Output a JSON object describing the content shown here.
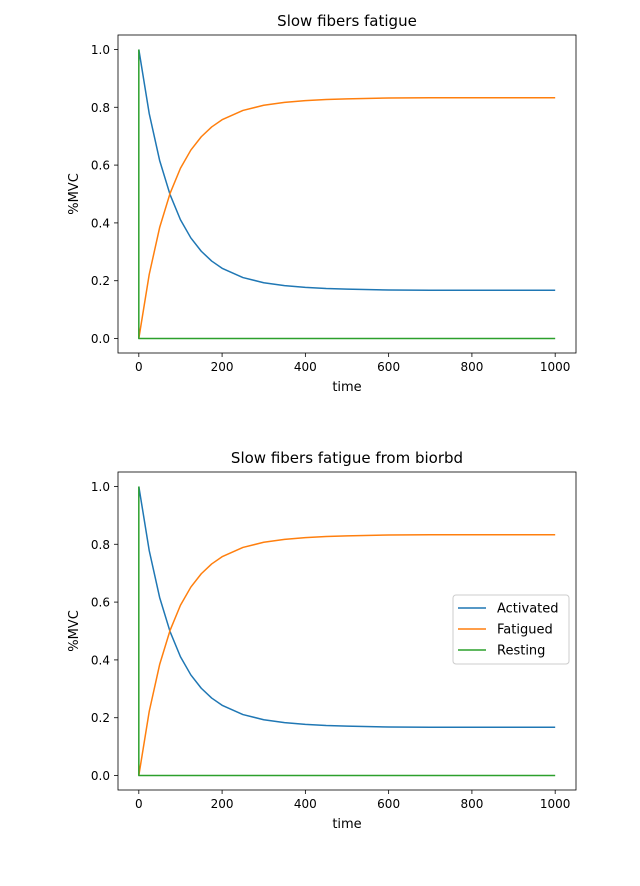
{
  "colors": {
    "activated": "#1f77b4",
    "fatigued": "#ff7f0e",
    "resting": "#2ca02c",
    "legend_border": "#cccccc"
  },
  "chart_data": [
    {
      "type": "line",
      "title": "Slow fibers fatigue",
      "xlabel": "time",
      "ylabel": "%MVC",
      "xlim": [
        -50,
        1050
      ],
      "ylim": [
        -0.05,
        1.05
      ],
      "xticks": [
        0,
        200,
        400,
        600,
        800,
        1000
      ],
      "yticks": [
        0.0,
        0.2,
        0.4,
        0.6,
        0.8,
        1.0
      ],
      "xtick_labels": [
        "0",
        "200",
        "400",
        "600",
        "800",
        "1000"
      ],
      "ytick_labels": [
        "0.0",
        "0.2",
        "0.4",
        "0.6",
        "0.8",
        "1.0"
      ],
      "grid": false,
      "legend": null,
      "series": [
        {
          "color": "#1f77b4",
          "x": [
            0,
            25,
            50,
            75,
            100,
            125,
            150,
            175,
            200,
            250,
            300,
            350,
            400,
            450,
            500,
            600,
            700,
            800,
            900,
            1000
          ],
          "values": [
            1.0,
            0.778,
            0.616,
            0.498,
            0.411,
            0.348,
            0.302,
            0.268,
            0.243,
            0.211,
            0.193,
            0.183,
            0.177,
            0.173,
            0.171,
            0.168,
            0.167,
            0.167,
            0.167,
            0.167
          ]
        },
        {
          "color": "#ff7f0e",
          "x": [
            0,
            25,
            50,
            75,
            100,
            125,
            150,
            175,
            200,
            250,
            300,
            350,
            400,
            450,
            500,
            600,
            700,
            800,
            900,
            1000
          ],
          "values": [
            0.0,
            0.222,
            0.384,
            0.502,
            0.589,
            0.652,
            0.698,
            0.732,
            0.757,
            0.789,
            0.807,
            0.817,
            0.823,
            0.827,
            0.829,
            0.832,
            0.833,
            0.833,
            0.833,
            0.833
          ]
        },
        {
          "color": "#2ca02c",
          "x": [
            0,
            0,
            0,
            1000
          ],
          "values": [
            1.0,
            0.0,
            0.0,
            0.0
          ]
        }
      ]
    },
    {
      "type": "line",
      "title": "Slow fibers fatigue from biorbd",
      "xlabel": "time",
      "ylabel": "%MVC",
      "xlim": [
        -50,
        1050
      ],
      "ylim": [
        -0.05,
        1.05
      ],
      "xticks": [
        0,
        200,
        400,
        600,
        800,
        1000
      ],
      "yticks": [
        0.0,
        0.2,
        0.4,
        0.6,
        0.8,
        1.0
      ],
      "xtick_labels": [
        "0",
        "200",
        "400",
        "600",
        "800",
        "1000"
      ],
      "ytick_labels": [
        "0.0",
        "0.2",
        "0.4",
        "0.6",
        "0.8",
        "1.0"
      ],
      "grid": false,
      "legend": "center-right",
      "series": [
        {
          "name": "Activated",
          "color": "#1f77b4",
          "x": [
            0,
            25,
            50,
            75,
            100,
            125,
            150,
            175,
            200,
            250,
            300,
            350,
            400,
            450,
            500,
            600,
            700,
            800,
            900,
            1000
          ],
          "values": [
            1.0,
            0.778,
            0.616,
            0.498,
            0.411,
            0.348,
            0.302,
            0.268,
            0.243,
            0.211,
            0.193,
            0.183,
            0.177,
            0.173,
            0.171,
            0.168,
            0.167,
            0.167,
            0.167,
            0.167
          ]
        },
        {
          "name": "Fatigued",
          "color": "#ff7f0e",
          "x": [
            0,
            25,
            50,
            75,
            100,
            125,
            150,
            175,
            200,
            250,
            300,
            350,
            400,
            450,
            500,
            600,
            700,
            800,
            900,
            1000
          ],
          "values": [
            0.0,
            0.222,
            0.384,
            0.502,
            0.589,
            0.652,
            0.698,
            0.732,
            0.757,
            0.789,
            0.807,
            0.817,
            0.823,
            0.827,
            0.829,
            0.832,
            0.833,
            0.833,
            0.833,
            0.833
          ]
        },
        {
          "name": "Resting",
          "color": "#2ca02c",
          "x": [
            0,
            0,
            0,
            1000
          ],
          "values": [
            1.0,
            0.0,
            0.0,
            0.0
          ]
        }
      ]
    }
  ]
}
